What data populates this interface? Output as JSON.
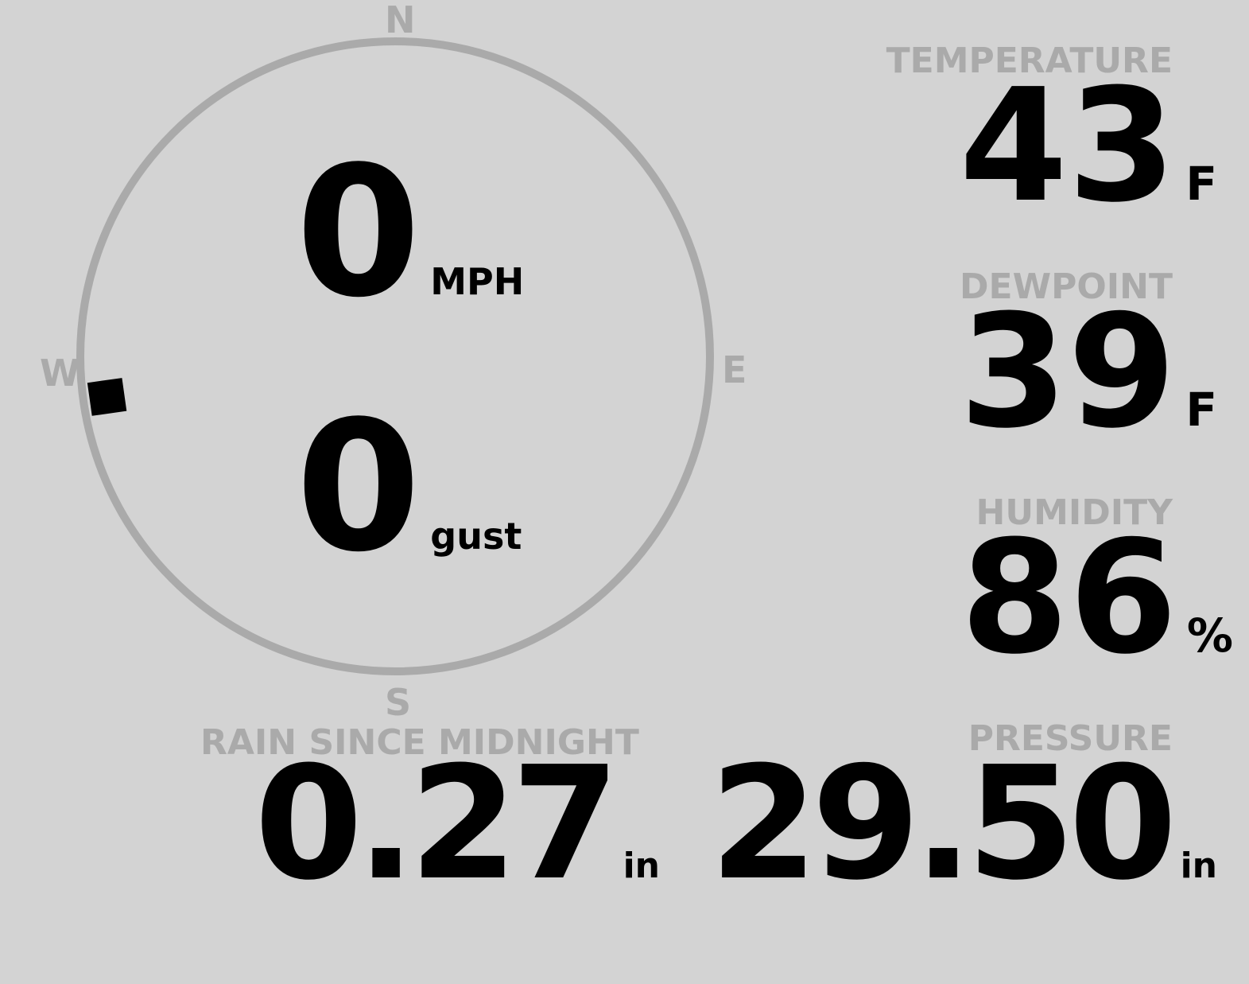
{
  "wind": {
    "speed": "0",
    "speed_unit": "MPH",
    "gust": "0",
    "gust_unit": "gust",
    "direction_degrees": 262,
    "compass": {
      "n": "N",
      "e": "E",
      "s": "S",
      "w": "W"
    },
    "ring_color": "#aaaaaa"
  },
  "temperature": {
    "label": "TEMPERATURE",
    "value": "43",
    "unit": "F"
  },
  "dewpoint": {
    "label": "DEWPOINT",
    "value": "39",
    "unit": "F"
  },
  "humidity": {
    "label": "HUMIDITY",
    "value": "86",
    "unit": "%"
  },
  "rain": {
    "label": "RAIN SINCE MIDNIGHT",
    "value": "0.27",
    "unit": "in"
  },
  "pressure": {
    "label": "PRESSURE",
    "value": "29.50",
    "unit": "in"
  }
}
